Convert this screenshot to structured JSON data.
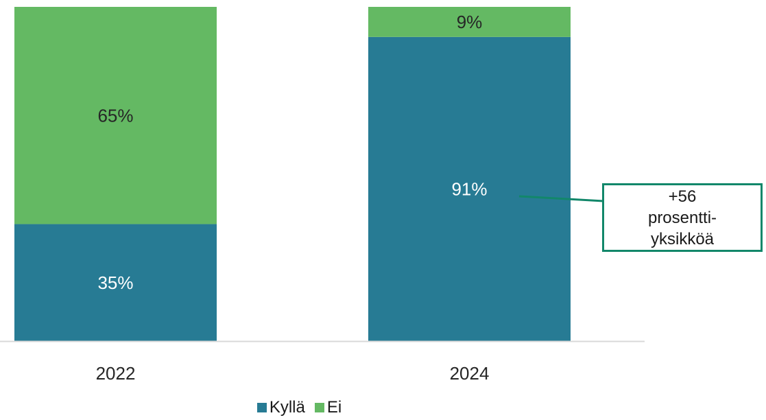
{
  "chart_data": {
    "type": "bar",
    "stacked": true,
    "categories": [
      "2022",
      "2024"
    ],
    "series": [
      {
        "name": "Kyllä",
        "values": [
          35,
          91
        ],
        "labels": [
          "35%",
          "91%"
        ],
        "color": "#277b94"
      },
      {
        "name": "Ei",
        "values": [
          65,
          9
        ],
        "labels": [
          "65%",
          "9%"
        ],
        "color": "#64b963"
      }
    ],
    "ylim": [
      0,
      100
    ],
    "grid": false,
    "legend_position": "bottom",
    "annotation": {
      "text": "+56 prosentti-yksikköä",
      "points_to": "2024",
      "border_color": "#12876a"
    },
    "axis_color": "#d9d9d9"
  }
}
